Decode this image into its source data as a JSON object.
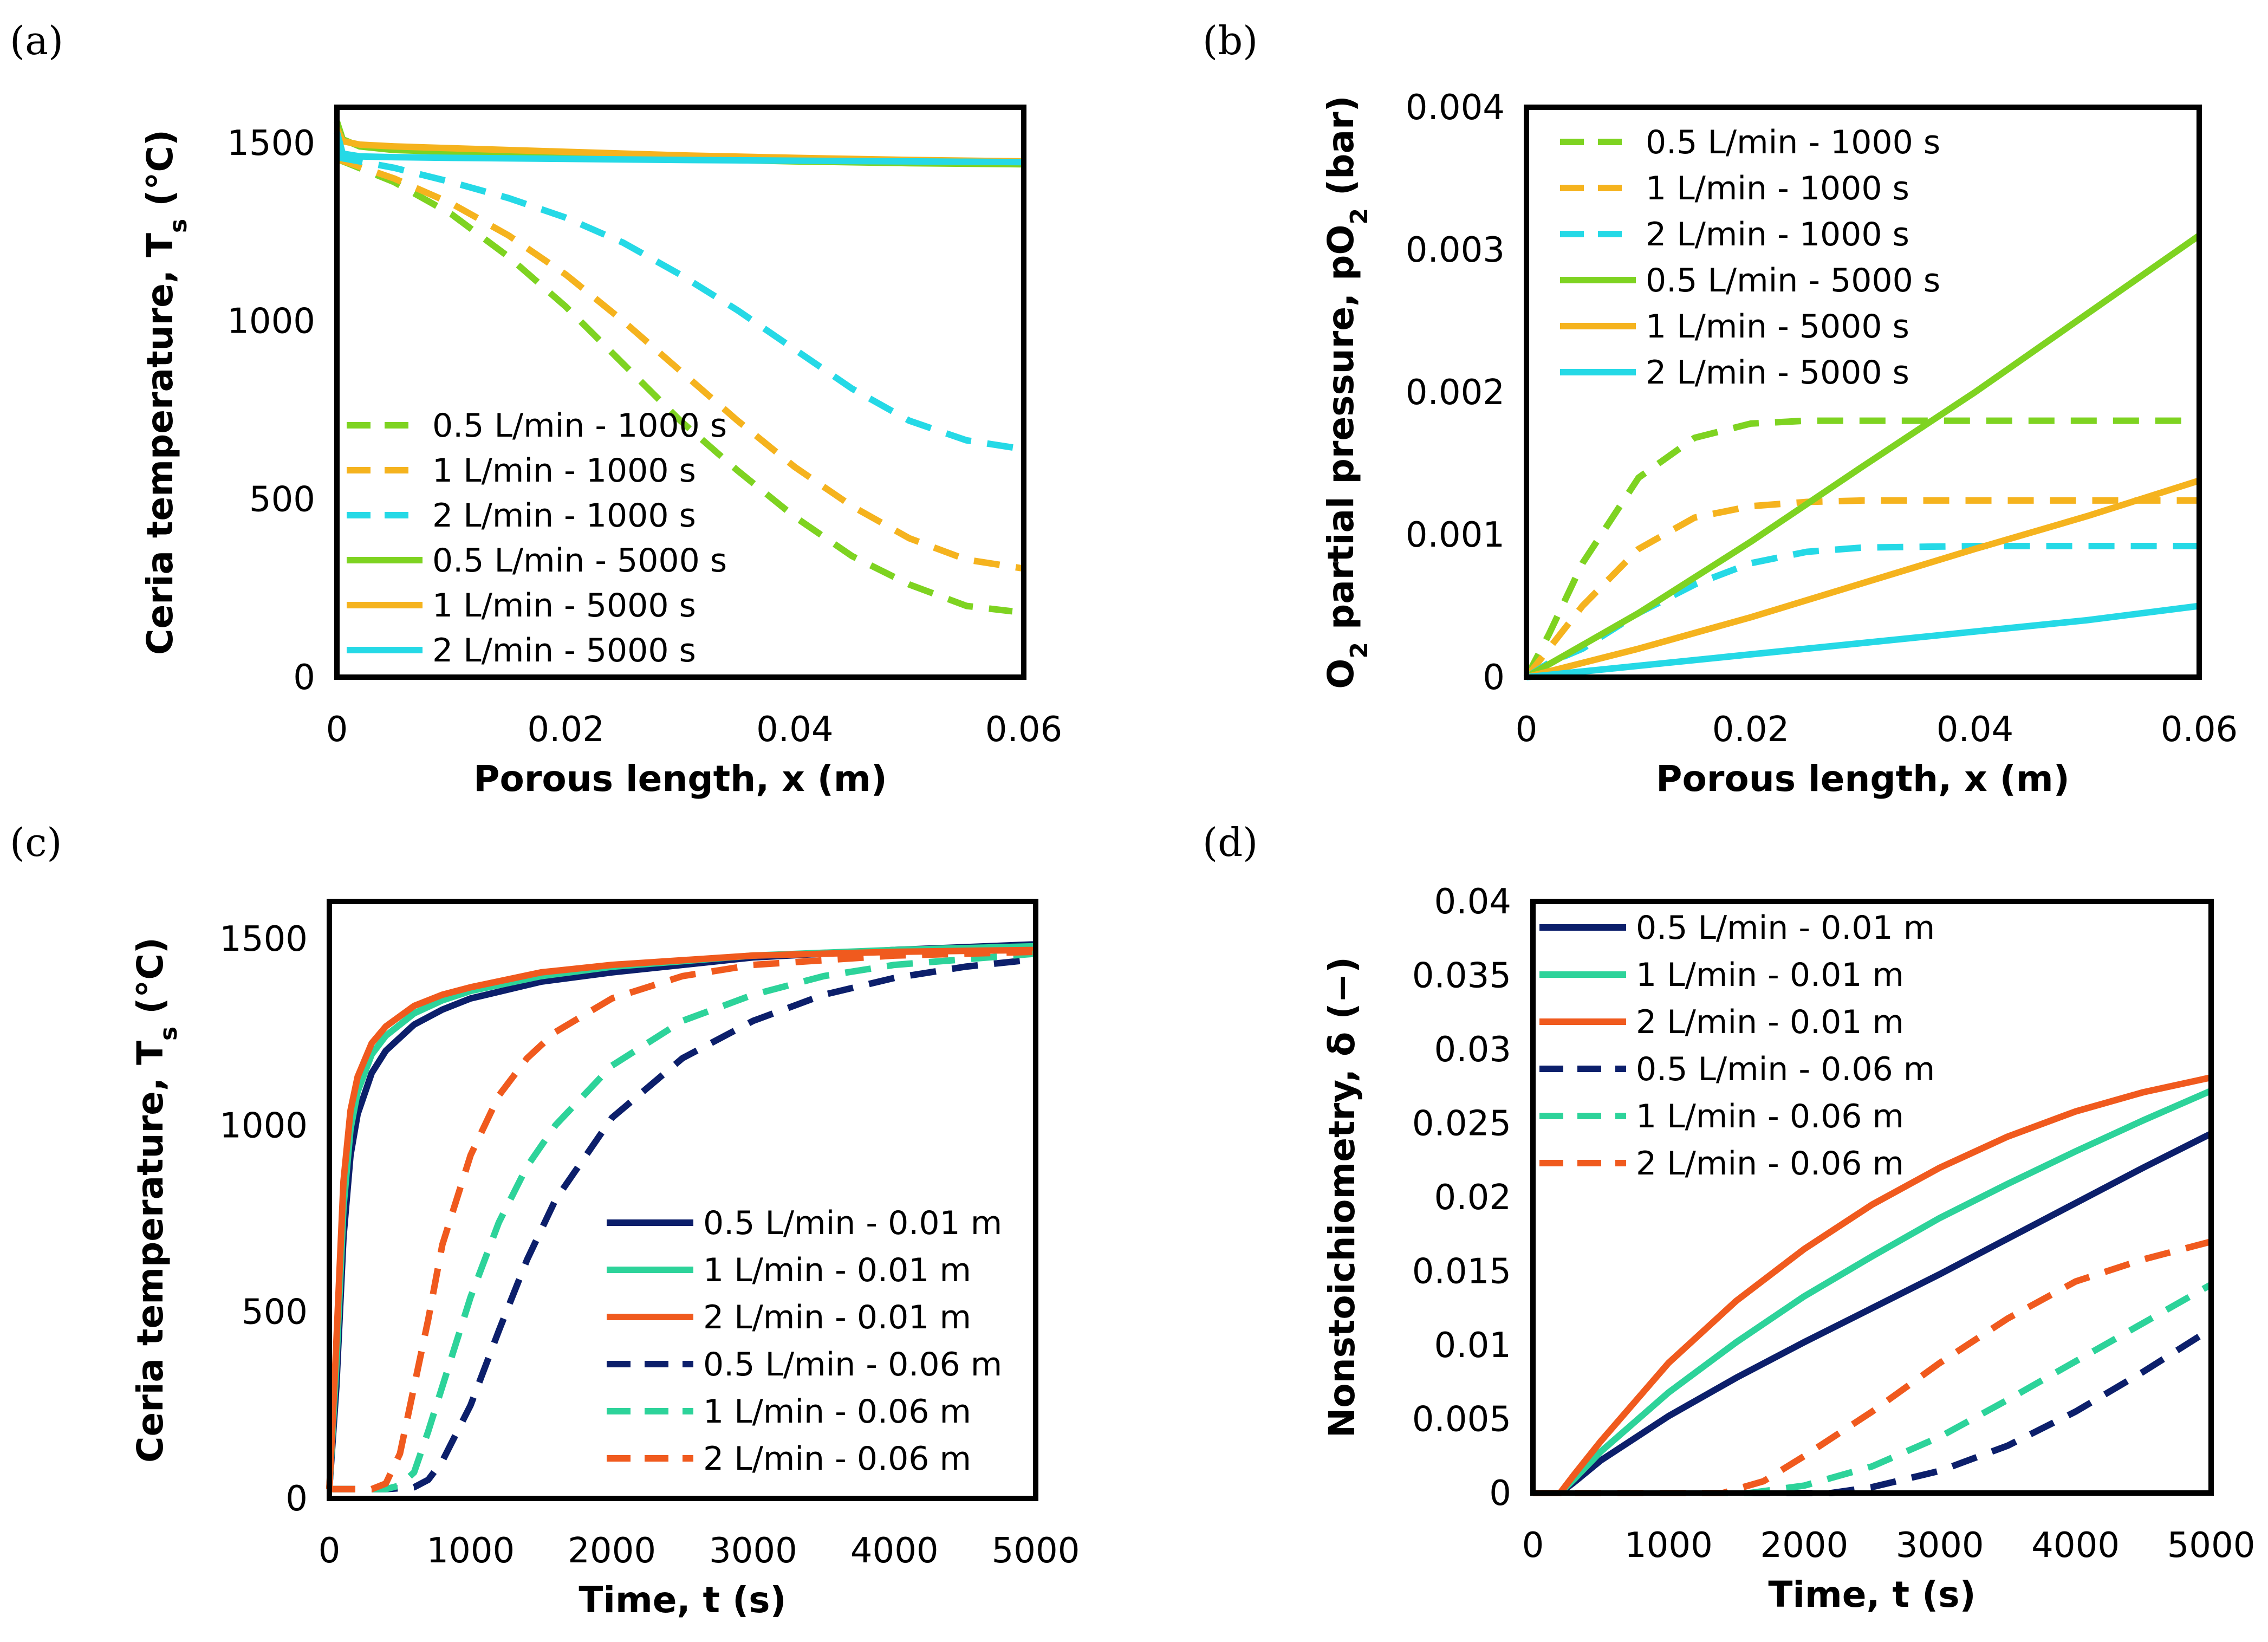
{
  "colors": {
    "green": "#7ED321",
    "orange": "#F5B31E",
    "cyan": "#25D9E6",
    "navy": "#0C1F6B",
    "teal": "#2DD39A",
    "red": "#F05A1E"
  },
  "chart_data": [
    {
      "panel": "(a)",
      "type": "line",
      "xlabel": "Porous length, x (m)",
      "ylabel_main": "Ceria temperature, T",
      "ylabel_sub": "s",
      "ylabel_tail": " (°C)",
      "xlim": [
        0,
        0.06
      ],
      "ylim": [
        0,
        1600
      ],
      "xticks": [
        0,
        0.02,
        0.04,
        0.06
      ],
      "xtick_labels": [
        "0",
        "0.02",
        "0.04",
        "0.06"
      ],
      "yticks": [
        0,
        500,
        1000,
        1500
      ],
      "ytick_labels": [
        "0",
        "500",
        "1000",
        "1500"
      ],
      "legend_position": "bottom-left",
      "series": [
        {
          "name": "0.5 L/min - 1000 s",
          "color": "green",
          "dash": true,
          "x": [
            0,
            0.005,
            0.01,
            0.015,
            0.02,
            0.025,
            0.03,
            0.035,
            0.04,
            0.045,
            0.05,
            0.055,
            0.059
          ],
          "y": [
            1455,
            1390,
            1300,
            1180,
            1040,
            880,
            720,
            580,
            450,
            340,
            260,
            200,
            185
          ]
        },
        {
          "name": "1 L/min - 1000 s",
          "color": "orange",
          "dash": true,
          "x": [
            0,
            0.005,
            0.01,
            0.015,
            0.02,
            0.025,
            0.03,
            0.035,
            0.04,
            0.045,
            0.05,
            0.055,
            0.06
          ],
          "y": [
            1455,
            1400,
            1330,
            1240,
            1130,
            1000,
            860,
            720,
            590,
            480,
            390,
            330,
            305
          ]
        },
        {
          "name": "2 L/min - 1000 s",
          "color": "cyan",
          "dash": true,
          "x": [
            0,
            0.005,
            0.01,
            0.015,
            0.02,
            0.025,
            0.03,
            0.035,
            0.04,
            0.045,
            0.05,
            0.055,
            0.06
          ],
          "y": [
            1460,
            1430,
            1390,
            1345,
            1290,
            1220,
            1130,
            1030,
            920,
            810,
            720,
            665,
            640
          ]
        },
        {
          "name": "0.5 L/min - 5000 s",
          "color": "green",
          "dash": false,
          "x": [
            0,
            0.0005,
            0.002,
            0.005,
            0.01,
            0.02,
            0.03,
            0.04,
            0.05,
            0.06
          ],
          "y": [
            1560,
            1510,
            1490,
            1480,
            1475,
            1465,
            1455,
            1448,
            1443,
            1440
          ]
        },
        {
          "name": "1 L/min - 5000 s",
          "color": "orange",
          "dash": false,
          "x": [
            0,
            0.0005,
            0.002,
            0.005,
            0.01,
            0.02,
            0.03,
            0.04,
            0.05,
            0.06
          ],
          "y": [
            1540,
            1505,
            1495,
            1490,
            1485,
            1475,
            1465,
            1458,
            1452,
            1448
          ]
        },
        {
          "name": "2 L/min - 5000 s",
          "color": "cyan",
          "dash": false,
          "x": [
            0,
            0.0005,
            0.002,
            0.005,
            0.01,
            0.02,
            0.03,
            0.04,
            0.05,
            0.06
          ],
          "y": [
            1530,
            1470,
            1462,
            1460,
            1458,
            1455,
            1452,
            1450,
            1448,
            1446
          ]
        }
      ]
    },
    {
      "panel": "(b)",
      "type": "line",
      "xlabel": "Porous length, x (m)",
      "ylabel_main": "O",
      "ylabel_sub": "2",
      "ylabel_tail": " partial pressure, pO",
      "ylabel_sub2": "2",
      "ylabel_tail2": " (bar)",
      "xlim": [
        0,
        0.06
      ],
      "ylim": [
        0,
        0.004
      ],
      "xticks": [
        0,
        0.02,
        0.04,
        0.06
      ],
      "xtick_labels": [
        "0",
        "0.02",
        "0.04",
        "0.06"
      ],
      "yticks": [
        0,
        0.001,
        0.002,
        0.003,
        0.004
      ],
      "ytick_labels": [
        "0",
        "0.001",
        "0.002",
        "0.003",
        "0.004"
      ],
      "legend_position": "top-left",
      "series": [
        {
          "name": "0.5 L/min - 1000 s",
          "color": "green",
          "dash": true,
          "x": [
            0,
            0.002,
            0.005,
            0.01,
            0.015,
            0.02,
            0.025,
            0.03,
            0.04,
            0.05,
            0.06
          ],
          "y": [
            0,
            0.0003,
            0.0008,
            0.0014,
            0.00168,
            0.00178,
            0.0018,
            0.0018,
            0.0018,
            0.0018,
            0.0018
          ]
        },
        {
          "name": "1 L/min - 1000 s",
          "color": "orange",
          "dash": true,
          "x": [
            0,
            0.002,
            0.005,
            0.01,
            0.015,
            0.02,
            0.025,
            0.03,
            0.04,
            0.05,
            0.06
          ],
          "y": [
            0,
            0.0002,
            0.0005,
            0.0009,
            0.00112,
            0.0012,
            0.00123,
            0.00124,
            0.00124,
            0.00124,
            0.00124
          ]
        },
        {
          "name": "2 L/min - 1000 s",
          "color": "cyan",
          "dash": true,
          "x": [
            0,
            0.002,
            0.005,
            0.01,
            0.015,
            0.02,
            0.025,
            0.03,
            0.04,
            0.05,
            0.06
          ],
          "y": [
            0,
            0.0001,
            0.0002,
            0.00045,
            0.00065,
            0.0008,
            0.00088,
            0.00091,
            0.00092,
            0.00092,
            0.00092
          ]
        },
        {
          "name": "0.5 L/min - 5000 s",
          "color": "green",
          "dash": false,
          "x": [
            0,
            0.01,
            0.02,
            0.03,
            0.04,
            0.05,
            0.06
          ],
          "y": [
            0,
            0.00045,
            0.00095,
            0.00148,
            0.002,
            0.00255,
            0.0031
          ]
        },
        {
          "name": "1 L/min - 5000 s",
          "color": "orange",
          "dash": false,
          "x": [
            0,
            0.01,
            0.02,
            0.03,
            0.04,
            0.05,
            0.06
          ],
          "y": [
            0,
            0.0002,
            0.00042,
            0.00066,
            0.0009,
            0.00113,
            0.00138
          ]
        },
        {
          "name": "2 L/min - 5000 s",
          "color": "cyan",
          "dash": false,
          "x": [
            0,
            0.01,
            0.02,
            0.03,
            0.04,
            0.05,
            0.06
          ],
          "y": [
            0,
            8e-05,
            0.00016,
            0.00024,
            0.00032,
            0.0004,
            0.0005
          ]
        }
      ]
    },
    {
      "panel": "(c)",
      "type": "line",
      "xlabel": "Time, t (s)",
      "ylabel_main": "Ceria temperature, T",
      "ylabel_sub": "s",
      "ylabel_tail": " (°C)",
      "xlim": [
        0,
        5000
      ],
      "ylim": [
        0,
        1600
      ],
      "xticks": [
        0,
        1000,
        2000,
        3000,
        4000,
        5000
      ],
      "xtick_labels": [
        "0",
        "1000",
        "2000",
        "3000",
        "4000",
        "5000"
      ],
      "yticks": [
        0,
        500,
        1000,
        1500
      ],
      "ytick_labels": [
        "0",
        "500",
        "1000",
        "1500"
      ],
      "legend_position": "bottom-right",
      "series": [
        {
          "name": "0.5 L/min - 0.01 m",
          "color": "navy",
          "dash": false,
          "x": [
            0,
            50,
            100,
            150,
            200,
            300,
            400,
            600,
            800,
            1000,
            1500,
            2000,
            3000,
            4000,
            5000
          ],
          "y": [
            25,
            300,
            700,
            920,
            1030,
            1140,
            1200,
            1270,
            1310,
            1340,
            1385,
            1410,
            1450,
            1470,
            1485
          ]
        },
        {
          "name": "1 L/min - 0.01 m",
          "color": "teal",
          "dash": false,
          "x": [
            0,
            50,
            100,
            150,
            200,
            300,
            400,
            600,
            800,
            1000,
            1500,
            2000,
            3000,
            4000,
            5000
          ],
          "y": [
            25,
            360,
            780,
            990,
            1090,
            1190,
            1240,
            1300,
            1335,
            1360,
            1400,
            1425,
            1455,
            1470,
            1480
          ]
        },
        {
          "name": "2 L/min - 0.01 m",
          "color": "red",
          "dash": false,
          "x": [
            0,
            50,
            100,
            150,
            200,
            300,
            400,
            600,
            800,
            1000,
            1500,
            2000,
            3000,
            4000,
            5000
          ],
          "y": [
            25,
            420,
            850,
            1040,
            1130,
            1220,
            1265,
            1320,
            1350,
            1370,
            1410,
            1430,
            1455,
            1465,
            1470
          ]
        },
        {
          "name": "0.5 L/min - 0.06 m",
          "color": "navy",
          "dash": true,
          "x": [
            0,
            400,
            600,
            700,
            800,
            1000,
            1200,
            1400,
            1600,
            2000,
            2500,
            3000,
            3500,
            4000,
            4500,
            5000
          ],
          "y": [
            25,
            25,
            30,
            50,
            100,
            250,
            450,
            640,
            800,
            1020,
            1180,
            1280,
            1350,
            1395,
            1425,
            1445
          ]
        },
        {
          "name": "1 L/min - 0.06 m",
          "color": "teal",
          "dash": true,
          "x": [
            0,
            400,
            500,
            600,
            700,
            800,
            1000,
            1200,
            1400,
            1600,
            2000,
            2500,
            3000,
            3500,
            4000,
            5000
          ],
          "y": [
            25,
            25,
            35,
            70,
            180,
            300,
            540,
            740,
            890,
            1000,
            1160,
            1280,
            1350,
            1400,
            1430,
            1460
          ]
        },
        {
          "name": "2 L/min - 0.06 m",
          "color": "red",
          "dash": true,
          "x": [
            0,
            300,
            400,
            500,
            600,
            700,
            800,
            1000,
            1200,
            1400,
            1600,
            2000,
            2500,
            3000,
            4000,
            5000
          ],
          "y": [
            25,
            25,
            40,
            120,
            300,
            480,
            680,
            920,
            1080,
            1180,
            1250,
            1340,
            1400,
            1430,
            1455,
            1465
          ]
        }
      ]
    },
    {
      "panel": "(d)",
      "type": "line",
      "xlabel": "Time, t (s)",
      "ylabel_main": "Nonstoichiometry, δ (−)",
      "xlim": [
        0,
        5000
      ],
      "ylim": [
        0,
        0.04
      ],
      "xticks": [
        0,
        1000,
        2000,
        3000,
        4000,
        5000
      ],
      "xtick_labels": [
        "0",
        "1000",
        "2000",
        "3000",
        "4000",
        "5000"
      ],
      "yticks": [
        0,
        0.005,
        0.01,
        0.015,
        0.02,
        0.025,
        0.03,
        0.035,
        0.04
      ],
      "ytick_labels": [
        "0",
        "0.005",
        "0.01",
        "0.015",
        "0.02",
        "0.025",
        "0.03",
        "0.035",
        "0.04"
      ],
      "legend_position": "top-left",
      "series": [
        {
          "name": "0.5 L/min - 0.01 m",
          "color": "navy",
          "dash": false,
          "x": [
            0,
            200,
            300,
            500,
            1000,
            1500,
            2000,
            2500,
            3000,
            3500,
            4000,
            4500,
            5000
          ],
          "y": [
            0,
            0,
            0.0007,
            0.0022,
            0.0052,
            0.0078,
            0.0102,
            0.0125,
            0.0148,
            0.0172,
            0.0196,
            0.022,
            0.0243
          ]
        },
        {
          "name": "1 L/min - 0.01 m",
          "color": "teal",
          "dash": false,
          "x": [
            0,
            200,
            300,
            500,
            1000,
            1500,
            2000,
            2500,
            3000,
            3500,
            4000,
            4500,
            5000
          ],
          "y": [
            0,
            0,
            0.0009,
            0.0028,
            0.0068,
            0.0102,
            0.0133,
            0.016,
            0.0186,
            0.0209,
            0.0231,
            0.0252,
            0.0272
          ]
        },
        {
          "name": "2 L/min - 0.01 m",
          "color": "red",
          "dash": false,
          "x": [
            0,
            200,
            300,
            500,
            1000,
            1500,
            2000,
            2500,
            3000,
            3500,
            4000,
            4500,
            5000
          ],
          "y": [
            0,
            0,
            0.0012,
            0.0035,
            0.0088,
            0.013,
            0.0165,
            0.0195,
            0.022,
            0.0241,
            0.0258,
            0.0271,
            0.0281
          ]
        },
        {
          "name": "0.5 L/min - 0.06 m",
          "color": "navy",
          "dash": true,
          "x": [
            0,
            2200,
            2500,
            3000,
            3500,
            4000,
            4500,
            5000
          ],
          "y": [
            0,
            0,
            0.0004,
            0.0015,
            0.0032,
            0.0055,
            0.0082,
            0.0111
          ]
        },
        {
          "name": "1 L/min - 0.06 m",
          "color": "teal",
          "dash": true,
          "x": [
            0,
            1600,
            2000,
            2500,
            3000,
            3500,
            4000,
            4500,
            5000
          ],
          "y": [
            0,
            0,
            0.0005,
            0.0018,
            0.0038,
            0.0063,
            0.0089,
            0.0115,
            0.0141
          ]
        },
        {
          "name": "2 L/min - 0.06 m",
          "color": "red",
          "dash": true,
          "x": [
            0,
            1400,
            1700,
            2000,
            2500,
            3000,
            3500,
            4000,
            4500,
            5000
          ],
          "y": [
            0,
            0,
            0.0008,
            0.0025,
            0.0055,
            0.0088,
            0.0118,
            0.0143,
            0.0158,
            0.017
          ]
        }
      ]
    }
  ]
}
